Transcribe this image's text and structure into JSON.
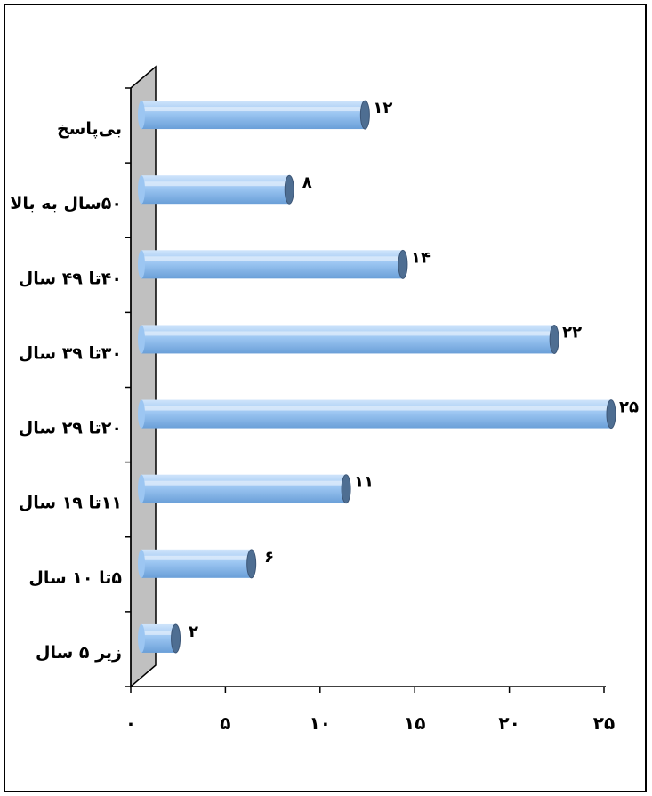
{
  "chart_data": {
    "type": "bar",
    "orientation": "horizontal",
    "categories": [
      "زیر ۵ سال",
      "۵تا ۱۰ سال",
      "۱۱تا ۱۹ سال",
      "۲۰تا ۲۹ سال",
      "۳۰تا ۳۹ سال",
      "۴۰تا ۴۹ سال",
      "۵۰سال به بالا",
      "بی‌پاسخ"
    ],
    "values": [
      2,
      6,
      11,
      25,
      22,
      14,
      8,
      12
    ],
    "value_labels": [
      "۲",
      "۶",
      "۱۱",
      "۲۵",
      "۲۲",
      "۱۴",
      "۸",
      "۱۲"
    ],
    "x_ticks": [
      0,
      5,
      10,
      15,
      20,
      25
    ],
    "x_tick_labels": [
      "۰",
      "۵",
      "۱۰",
      "۱۵",
      "۲۰",
      "۲۵"
    ],
    "xlim": [
      0,
      25
    ],
    "title": "",
    "xlabel": "",
    "ylabel": "",
    "grid": false,
    "legend": "none",
    "colors": {
      "bar_top": "#cfe4fb",
      "bar_mid": "#9cc6f2",
      "bar_bottom": "#6a9fd8",
      "bar_cap": "#4e6e92",
      "wall": "#c0c0c0",
      "axis": "#000000"
    }
  }
}
